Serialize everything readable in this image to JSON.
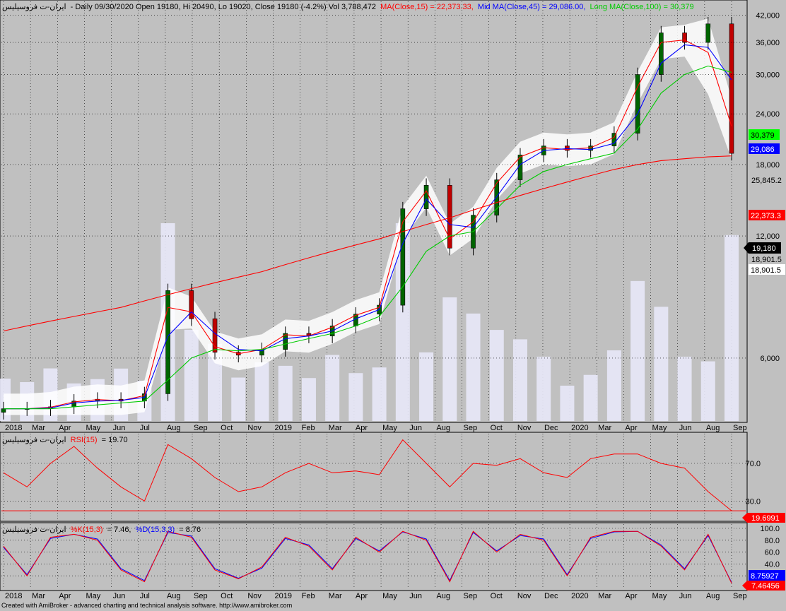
{
  "header": {
    "symbol": "ایران-ت فروسیلیس",
    "info": "- Daily 09/30/2020 Open 19180, Hi 20490, Lo 19020, Close 19180 (-4.2%) Vol 3,788,472",
    "ma15": "MA(Close,15) = 22,373.33,",
    "ma45": "Mid MA(Close,45) = 29,086.00,",
    "ma100": "Long MA(Close,100) = 30,379"
  },
  "colors": {
    "background": "#c0c0c0",
    "candle_up": "#006400",
    "candle_down": "#c00000",
    "ma15": "#ff0000",
    "ma45": "#0000ff",
    "ma100": "#00cc00",
    "trendline": "#ff0000",
    "band": "#ffffff",
    "volume": "#e8e8f8"
  },
  "price_badges": {
    "ma100": "30,379",
    "ma45": "29,086",
    "ma15": "22,373.3",
    "close": "19,180",
    "trend": "18,901.5",
    "trend_value": "18,901.5",
    "level": "25,845.2"
  },
  "rsi_panel": {
    "symbol": "ایران-ت فروسیلیس",
    "label": "RSI(15)",
    "value_text": "= 19.70",
    "badge": "19.6991"
  },
  "stoch_panel": {
    "symbol": "ایران-ت فروسیلیس",
    "k_label": "%K(15,3)",
    "k_value": "= 7.46,",
    "d_label": "%D(15,3,3)",
    "d_value": "= 8.76",
    "k_badge": "7.46456",
    "d_badge": "8.75927"
  },
  "footer": "Created with AmiBroker - advanced charting and technical analysis software. http://www.amibroker.com",
  "chart_data": [
    {
      "type": "line",
      "title": "Daily price (log scale) with moving averages",
      "x": [
        "2018-02",
        "2018-03",
        "2018-04",
        "2018-05",
        "2018-06",
        "2018-07",
        "2018-08",
        "2018-09",
        "2018-10",
        "2018-11",
        "2018-12",
        "2019-01",
        "2019-02",
        "2019-03",
        "2019-04",
        "2019-05",
        "2019-06",
        "2019-07",
        "2019-08",
        "2019-09",
        "2019-10",
        "2019-11",
        "2019-12",
        "2020-01",
        "2020-02",
        "2020-03",
        "2020-04",
        "2020-05",
        "2020-06",
        "2020-07",
        "2020-08",
        "2020-09"
      ],
      "x_ticks": [
        "2018",
        "Mar",
        "Apr",
        "May",
        "Jun",
        "Jul",
        "Aug",
        "Sep",
        "Oct",
        "Nov",
        "2019",
        "Feb",
        "Mar",
        "Apr",
        "May",
        "Jun",
        "Aug",
        "Sep",
        "Oct",
        "Nov",
        "Dec",
        "2020",
        "Mar",
        "Apr",
        "May",
        "Jun",
        "Aug",
        "Sep"
      ],
      "y_ticks": [
        6000,
        12000,
        18000,
        24000,
        30000,
        36000,
        42000
      ],
      "y_scale": "log",
      "ylim": [
        4300,
        44000
      ],
      "series": [
        {
          "name": "Close",
          "values": [
            4500,
            4500,
            4550,
            4700,
            4750,
            4700,
            4900,
            8800,
            7500,
            6200,
            6100,
            6300,
            6900,
            6800,
            7200,
            7700,
            8100,
            14000,
            16000,
            11200,
            13500,
            16500,
            19000,
            20000,
            19500,
            20000,
            21500,
            30000,
            38000,
            36000,
            40000,
            19180
          ]
        },
        {
          "name": "MA(Close,15)",
          "values": [
            4500,
            4500,
            4540,
            4680,
            4740,
            4710,
            4850,
            8000,
            7800,
            6400,
            6150,
            6300,
            6850,
            6800,
            7150,
            7650,
            8000,
            13000,
            15500,
            11800,
            13000,
            16200,
            18800,
            19800,
            19600,
            19800,
            21000,
            28000,
            36000,
            36500,
            34000,
            22373
          ]
        },
        {
          "name": "Mid MA(Close,45)",
          "values": [
            4500,
            4500,
            4520,
            4650,
            4700,
            4720,
            4800,
            6800,
            7800,
            6900,
            6300,
            6250,
            6700,
            6800,
            7000,
            7500,
            7900,
            11500,
            14800,
            12800,
            12600,
            15000,
            18000,
            19500,
            19700,
            19600,
            20300,
            24000,
            32000,
            35500,
            35000,
            29086
          ]
        },
        {
          "name": "Long MA(Close,100)",
          "values": [
            4500,
            4500,
            4500,
            4550,
            4600,
            4650,
            4700,
            5300,
            6000,
            6300,
            6250,
            6300,
            6500,
            6700,
            6900,
            7200,
            7600,
            9000,
            11000,
            12000,
            12300,
            14000,
            16000,
            17300,
            18000,
            18600,
            19200,
            22000,
            27000,
            30000,
            31500,
            30379
          ]
        },
        {
          "name": "Trendline",
          "values": [
            7000,
            7200,
            7400,
            7600,
            7800,
            8000,
            8300,
            8600,
            8900,
            9200,
            9500,
            9800,
            10200,
            10600,
            11000,
            11400,
            11800,
            12300,
            12800,
            13300,
            13900,
            14500,
            15100,
            15700,
            16300,
            16900,
            17500,
            18000,
            18400,
            18600,
            18800,
            18901.5
          ]
        }
      ]
    },
    {
      "type": "line",
      "title": "RSI(15)",
      "ylim": [
        10,
        100
      ],
      "y_ticks": [
        30.0,
        70.0
      ],
      "series": [
        {
          "name": "RSI(15)",
          "values": [
            60,
            45,
            70,
            88,
            65,
            45,
            30,
            90,
            75,
            55,
            40,
            45,
            60,
            70,
            60,
            62,
            58,
            95,
            70,
            45,
            70,
            68,
            75,
            60,
            55,
            75,
            80,
            80,
            70,
            65,
            40,
            19.7
          ]
        }
      ]
    },
    {
      "type": "line",
      "title": "Stochastic",
      "ylim": [
        0,
        100
      ],
      "y_ticks": [
        20.0,
        40.0,
        60.0,
        80.0,
        100.0
      ],
      "series": [
        {
          "name": "%K(15,3)",
          "values": [
            70,
            20,
            85,
            90,
            80,
            30,
            10,
            95,
            85,
            30,
            15,
            35,
            85,
            70,
            30,
            85,
            60,
            95,
            80,
            10,
            95,
            60,
            90,
            80,
            20,
            85,
            95,
            95,
            70,
            30,
            90,
            7.46
          ]
        },
        {
          "name": "%D(15,3,3)",
          "values": [
            68,
            22,
            83,
            90,
            82,
            32,
            12,
            93,
            87,
            32,
            16,
            33,
            83,
            72,
            32,
            83,
            62,
            94,
            82,
            12,
            93,
            62,
            88,
            82,
            22,
            83,
            94,
            95,
            72,
            32,
            88,
            8.76
          ]
        }
      ]
    }
  ]
}
